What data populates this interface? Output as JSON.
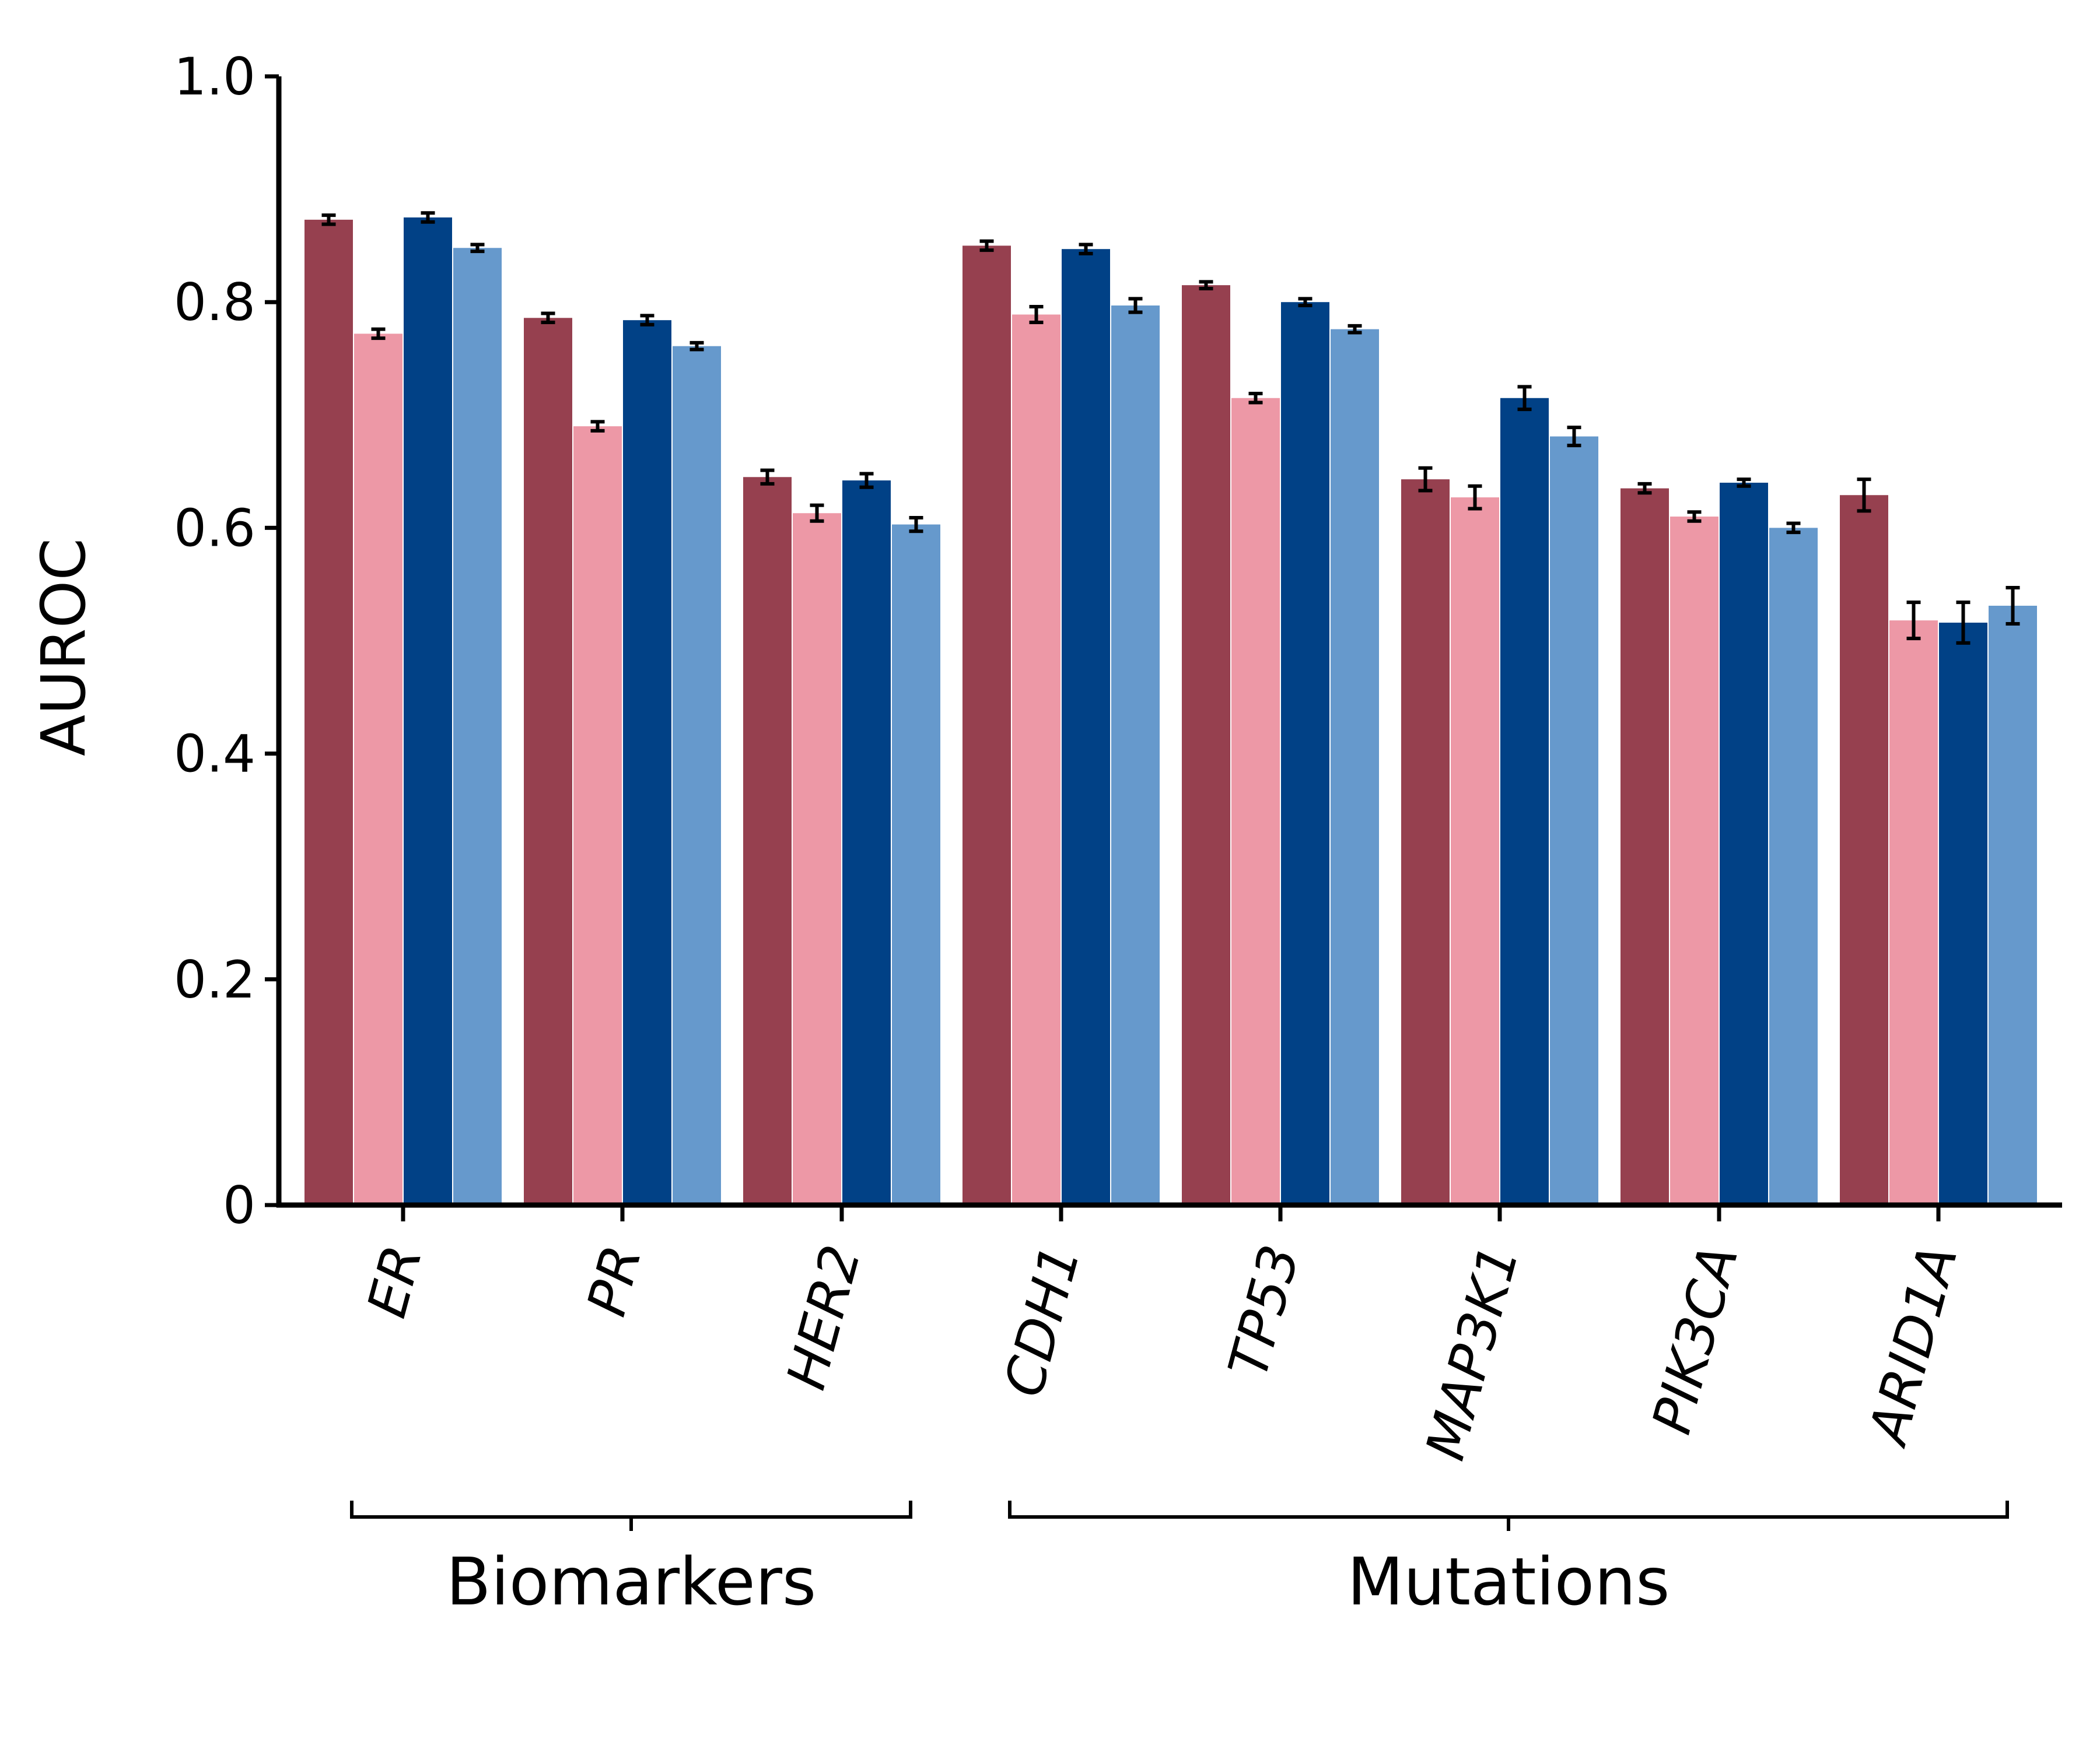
{
  "chart_data": {
    "type": "bar",
    "ylabel": "AUROC",
    "ylim": [
      0,
      1.0
    ],
    "yticks": [
      {
        "value": 0,
        "label": "0"
      },
      {
        "value": 0.2,
        "label": "0.2"
      },
      {
        "value": 0.4,
        "label": "0.4"
      },
      {
        "value": 0.6,
        "label": "0.6"
      },
      {
        "value": 0.8,
        "label": "0.8"
      },
      {
        "value": 1.0,
        "label": "1.0"
      }
    ],
    "categories": [
      "ER",
      "PR",
      "HER2",
      "CDH1",
      "TP53",
      "MAP3K1",
      "PIK3CA",
      "ARID1A"
    ],
    "series": [
      {
        "color": "#96404f",
        "values": [
          0.873,
          0.786,
          0.645,
          0.85,
          0.815,
          0.643,
          0.635,
          0.629
        ],
        "errors": [
          0.004,
          0.004,
          0.006,
          0.004,
          0.003,
          0.01,
          0.004,
          0.014
        ]
      },
      {
        "color": "#ed98a6",
        "values": [
          0.772,
          0.69,
          0.613,
          0.789,
          0.715,
          0.627,
          0.61,
          0.518
        ],
        "errors": [
          0.004,
          0.004,
          0.007,
          0.007,
          0.004,
          0.01,
          0.004,
          0.016
        ]
      },
      {
        "color": "#014186",
        "values": [
          0.875,
          0.784,
          0.642,
          0.847,
          0.8,
          0.715,
          0.64,
          0.516
        ],
        "errors": [
          0.004,
          0.004,
          0.006,
          0.004,
          0.003,
          0.01,
          0.003,
          0.018
        ]
      },
      {
        "color": "#6699cc",
        "values": [
          0.848,
          0.761,
          0.603,
          0.797,
          0.776,
          0.681,
          0.6,
          0.531
        ],
        "errors": [
          0.003,
          0.003,
          0.006,
          0.006,
          0.003,
          0.008,
          0.004,
          0.016
        ]
      }
    ],
    "groups": [
      {
        "label": "Biomarkers",
        "from": 0,
        "to": 2
      },
      {
        "label": "Mutations",
        "from": 3,
        "to": 7
      }
    ],
    "grid": false,
    "legend": "none"
  }
}
